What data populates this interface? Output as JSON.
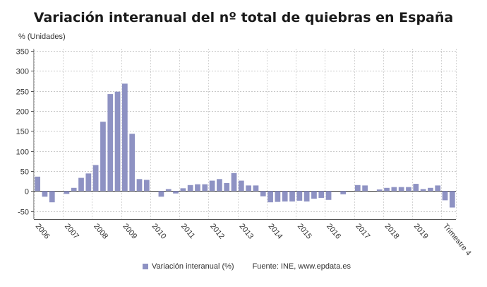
{
  "chart_data": {
    "type": "bar",
    "title": "Variación interanual del nº total de quiebras en España",
    "ylabel": "% (Unidades)",
    "ylim": [
      -70,
      355
    ],
    "yticks": [
      350,
      300,
      250,
      200,
      150,
      100,
      50,
      0,
      -50
    ],
    "grid": true,
    "legend_position": "bottom",
    "source": "Fuente: INE, www.epdata.es",
    "year_labels": [
      "2006",
      "2007",
      "2008",
      "2009",
      "2010",
      "2011",
      "2012",
      "2013",
      "2014",
      "2015",
      "2016",
      "2017",
      "2018",
      "2019",
      "Trimestre 4"
    ],
    "series": [
      {
        "name": "Variación interanual (%)",
        "color": "#8e92c3",
        "values": [
          36,
          -14,
          -28,
          0,
          -7,
          8,
          33,
          44,
          65,
          173,
          242,
          248,
          268,
          143,
          30,
          28,
          0,
          -14,
          5,
          -6,
          7,
          15,
          17,
          17,
          26,
          30,
          20,
          45,
          26,
          14,
          14,
          -13,
          -28,
          -27,
          -26,
          -26,
          -24,
          -26,
          -19,
          -17,
          -22,
          0,
          -8,
          0,
          15,
          14,
          0,
          4,
          8,
          10,
          10,
          10,
          18,
          5,
          8,
          14,
          -23,
          -41
        ]
      }
    ]
  },
  "legend": {
    "label": "Variación interanual (%)",
    "source": "Fuente: INE, www.epdata.es"
  }
}
